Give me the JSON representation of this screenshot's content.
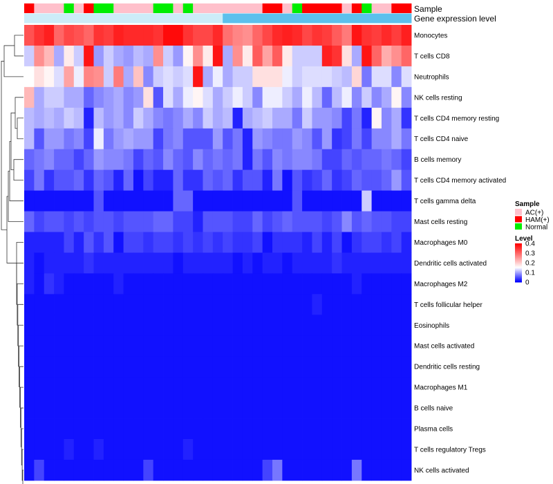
{
  "chart_data": {
    "type": "heatmap",
    "title": "",
    "annotation_tracks": [
      {
        "key": "sample",
        "name": "Sample"
      },
      {
        "key": "gene_level",
        "name": "Gene expression level"
      }
    ],
    "sample_groups": [
      {
        "name": "AC(+)",
        "color": "#ffc0cb"
      },
      {
        "name": "HAM(+)",
        "color": "#ff0000"
      },
      {
        "name": "Normal",
        "color": "#00ee00"
      }
    ],
    "sample_annotation": [
      "HAM(+)",
      "AC(+)",
      "AC(+)",
      "AC(+)",
      "Normal",
      "AC(+)",
      "HAM(+)",
      "Normal",
      "Normal",
      "AC(+)",
      "AC(+)",
      "AC(+)",
      "AC(+)",
      "Normal",
      "Normal",
      "AC(+)",
      "Normal",
      "AC(+)",
      "AC(+)",
      "AC(+)",
      "AC(+)",
      "AC(+)",
      "AC(+)",
      "AC(+)",
      "HAM(+)",
      "HAM(+)",
      "AC(+)",
      "Normal",
      "HAM(+)",
      "HAM(+)",
      "HAM(+)",
      "HAM(+)",
      "AC(+)",
      "HAM(+)",
      "Normal",
      "AC(+)",
      "AC(+)",
      "HAM(+)",
      "HAM(+)"
    ],
    "gene_level_colors": {
      "low": "#ccecf8",
      "high": "#5cc0ec"
    },
    "gene_level_split": 20,
    "value_legend": {
      "title": "Level",
      "ticks": [
        "0.4",
        "0.3",
        "0.2",
        "0.1",
        "0"
      ],
      "min": 0,
      "max": 0.4
    },
    "sample_legend_title": "Sample",
    "color_scale": {
      "low": "#0000ff",
      "mid": "#ffffff",
      "high": "#ff0000",
      "min": 0,
      "mid_value": 0.15,
      "max": 0.4
    },
    "rows": [
      {
        "name": "Monocytes",
        "values": [
          0.32,
          0.35,
          0.37,
          0.3,
          0.33,
          0.32,
          0.3,
          0.35,
          0.34,
          0.37,
          0.36,
          0.36,
          0.36,
          0.35,
          0.39,
          0.39,
          0.35,
          0.33,
          0.33,
          0.36,
          0.29,
          0.27,
          0.26,
          0.3,
          0.33,
          0.36,
          0.37,
          0.36,
          0.33,
          0.35,
          0.34,
          0.31,
          0.28,
          0.38,
          0.35,
          0.34,
          0.36,
          0.34,
          0.37
        ]
      },
      {
        "name": "T cells CD8",
        "values": [
          0.12,
          0.26,
          0.22,
          0.1,
          0.17,
          0.12,
          0.38,
          0.09,
          0.12,
          0.1,
          0.09,
          0.11,
          0.1,
          0.26,
          0.12,
          0.09,
          0.16,
          0.26,
          0.17,
          0.38,
          0.1,
          0.26,
          0.17,
          0.31,
          0.24,
          0.31,
          0.17,
          0.12,
          0.12,
          0.12,
          0.37,
          0.35,
          0.18,
          0.1,
          0.38,
          0.3,
          0.23,
          0.26,
          0.3
        ]
      },
      {
        "name": "Neutrophils",
        "values": [
          0.15,
          0.18,
          0.16,
          0.13,
          0.24,
          0.14,
          0.27,
          0.26,
          0.12,
          0.28,
          0.1,
          0.21,
          0.08,
          0.12,
          0.13,
          0.12,
          0.13,
          0.38,
          0.1,
          0.14,
          0.1,
          0.12,
          0.12,
          0.18,
          0.18,
          0.18,
          0.14,
          0.12,
          0.13,
          0.13,
          0.13,
          0.12,
          0.11,
          0.19,
          0.07,
          0.13,
          0.13,
          0.08,
          0.13
        ]
      },
      {
        "name": "NK cells resting",
        "values": [
          0.22,
          0.1,
          0.12,
          0.12,
          0.1,
          0.1,
          0.06,
          0.08,
          0.09,
          0.1,
          0.08,
          0.09,
          0.18,
          0.05,
          0.13,
          0.1,
          0.14,
          0.16,
          0.13,
          0.1,
          0.12,
          0.14,
          0.12,
          0.08,
          0.14,
          0.14,
          0.12,
          0.1,
          0.14,
          0.11,
          0.06,
          0.11,
          0.14,
          0.08,
          0.12,
          0.08,
          0.1,
          0.16,
          0.08
        ]
      },
      {
        "name": "T cells CD4 memory resting",
        "values": [
          0.11,
          0.1,
          0.11,
          0.1,
          0.12,
          0.11,
          0.02,
          0.11,
          0.09,
          0.1,
          0.08,
          0.12,
          0.1,
          0.08,
          0.07,
          0.08,
          0.1,
          0.08,
          0.12,
          0.1,
          0.11,
          0.02,
          0.1,
          0.11,
          0.12,
          0.1,
          0.1,
          0.07,
          0.12,
          0.09,
          0.09,
          0.08,
          0.04,
          0.07,
          0.02,
          0.16,
          0.08,
          0.1,
          0.03
        ]
      },
      {
        "name": "T cells CD4 naive",
        "values": [
          0.11,
          0.05,
          0.09,
          0.09,
          0.07,
          0.08,
          0.04,
          0.14,
          0.07,
          0.09,
          0.1,
          0.09,
          0.09,
          0.04,
          0.07,
          0.08,
          0.05,
          0.05,
          0.05,
          0.09,
          0.05,
          0.07,
          0.02,
          0.09,
          0.08,
          0.07,
          0.07,
          0.09,
          0.08,
          0.05,
          0.09,
          0.03,
          0.04,
          0.07,
          0.04,
          0.08,
          0.08,
          0.1,
          0.07
        ]
      },
      {
        "name": "B cells memory",
        "values": [
          0.06,
          0.07,
          0.08,
          0.06,
          0.06,
          0.04,
          0.06,
          0.09,
          0.08,
          0.08,
          0.07,
          0.04,
          0.06,
          0.05,
          0.08,
          0.06,
          0.05,
          0.08,
          0.06,
          0.07,
          0.06,
          0.07,
          0.02,
          0.07,
          0.05,
          0.08,
          0.07,
          0.08,
          0.08,
          0.07,
          0.04,
          0.04,
          0.06,
          0.05,
          0.06,
          0.06,
          0.07,
          0.06,
          0.04
        ]
      },
      {
        "name": "T cells CD4 memory activated",
        "values": [
          0.04,
          0.07,
          0.03,
          0.05,
          0.05,
          0.06,
          0.03,
          0.06,
          0.05,
          0.02,
          0.06,
          0.01,
          0.04,
          0.02,
          0.02,
          0.06,
          0.03,
          0.03,
          0.06,
          0.05,
          0.06,
          0.03,
          0.05,
          0.05,
          0.02,
          0.07,
          0.01,
          0.05,
          0.03,
          0.04,
          0.06,
          0.03,
          0.04,
          0.06,
          0.05,
          0.05,
          0.06,
          0.09,
          0.05
        ]
      },
      {
        "name": "T cells gamma delta",
        "values": [
          0.01,
          0.01,
          0.01,
          0.01,
          0.01,
          0.01,
          0.01,
          0.05,
          0.01,
          0.01,
          0.01,
          0.01,
          0.01,
          0.01,
          0.01,
          0.06,
          0.06,
          0.01,
          0.01,
          0.01,
          0.01,
          0.01,
          0.01,
          0.01,
          0.01,
          0.01,
          0.01,
          0.05,
          0.01,
          0.01,
          0.01,
          0.01,
          0.01,
          0.01,
          0.12,
          0.01,
          0.01,
          0.01,
          0.01
        ]
      },
      {
        "name": "Mast cells resting",
        "values": [
          0.06,
          0.04,
          0.05,
          0.05,
          0.04,
          0.05,
          0.04,
          0.05,
          0.05,
          0.04,
          0.05,
          0.05,
          0.05,
          0.06,
          0.06,
          0.04,
          0.04,
          0.02,
          0.05,
          0.05,
          0.05,
          0.04,
          0.04,
          0.06,
          0.04,
          0.05,
          0.06,
          0.05,
          0.05,
          0.05,
          0.04,
          0.05,
          0.08,
          0.05,
          0.06,
          0.05,
          0.05,
          0.04,
          0.04
        ]
      },
      {
        "name": "Macrophages M0",
        "values": [
          0.02,
          0.02,
          0.02,
          0.02,
          0.04,
          0.02,
          0.05,
          0.03,
          0.05,
          0.01,
          0.04,
          0.04,
          0.03,
          0.04,
          0.04,
          0.03,
          0.04,
          0.03,
          0.04,
          0.03,
          0.04,
          0.03,
          0.03,
          0.04,
          0.01,
          0.03,
          0.03,
          0.03,
          0.02,
          0.04,
          0.02,
          0.04,
          0.01,
          0.03,
          0.04,
          0.04,
          0.03,
          0.04,
          0.02
        ]
      },
      {
        "name": "Dendritic cells activated",
        "values": [
          0.02,
          0.01,
          0.02,
          0.02,
          0.02,
          0.02,
          0.03,
          0.02,
          0.02,
          0.02,
          0.02,
          0.02,
          0.02,
          0.02,
          0.02,
          0.01,
          0.02,
          0.02,
          0.02,
          0.02,
          0.02,
          0.01,
          0.02,
          0.01,
          0.02,
          0.02,
          0.01,
          0.02,
          0.02,
          0.02,
          0.02,
          0.03,
          0.02,
          0.02,
          0.02,
          0.02,
          0.02,
          0.02,
          0.02
        ]
      },
      {
        "name": "Macrophages M2",
        "values": [
          0.02,
          0.01,
          0.03,
          0.02,
          0.01,
          0.01,
          0.01,
          0.01,
          0.01,
          0.02,
          0.01,
          0.01,
          0.01,
          0.01,
          0.01,
          0.01,
          0.01,
          0.01,
          0.01,
          0.01,
          0.01,
          0.01,
          0.01,
          0.01,
          0.01,
          0.01,
          0.01,
          0.01,
          0.01,
          0.01,
          0.01,
          0.01,
          0.01,
          0.02,
          0.01,
          0.01,
          0.01,
          0.01,
          0.01
        ]
      },
      {
        "name": "T cells follicular helper",
        "values": [
          0.01,
          0.01,
          0.01,
          0.01,
          0.01,
          0.01,
          0.01,
          0.01,
          0.01,
          0.01,
          0.01,
          0.01,
          0.01,
          0.01,
          0.01,
          0.01,
          0.01,
          0.01,
          0.01,
          0.01,
          0.01,
          0.01,
          0.01,
          0.01,
          0.01,
          0.01,
          0.01,
          0.01,
          0.01,
          0.02,
          0.01,
          0.01,
          0.01,
          0.01,
          0.01,
          0.01,
          0.01,
          0.01,
          0.01
        ]
      },
      {
        "name": "Eosinophils",
        "values": [
          0.01,
          0.01,
          0.01,
          0.01,
          0.01,
          0.01,
          0.01,
          0.01,
          0.01,
          0.01,
          0.01,
          0.01,
          0.01,
          0.01,
          0.01,
          0.01,
          0.01,
          0.01,
          0.01,
          0.01,
          0.01,
          0.01,
          0.01,
          0.01,
          0.01,
          0.01,
          0.01,
          0.01,
          0.01,
          0.01,
          0.01,
          0.01,
          0.01,
          0.01,
          0.01,
          0.01,
          0.01,
          0.01,
          0.01
        ]
      },
      {
        "name": "Mast cells activated",
        "values": [
          0.01,
          0.01,
          0.01,
          0.01,
          0.01,
          0.01,
          0.01,
          0.01,
          0.01,
          0.01,
          0.01,
          0.01,
          0.01,
          0.01,
          0.01,
          0.01,
          0.01,
          0.01,
          0.01,
          0.01,
          0.01,
          0.01,
          0.01,
          0.01,
          0.01,
          0.01,
          0.01,
          0.01,
          0.01,
          0.01,
          0.01,
          0.01,
          0.01,
          0.01,
          0.01,
          0.01,
          0.01,
          0.01,
          0.01
        ]
      },
      {
        "name": "Dendritic cells resting",
        "values": [
          0.01,
          0.01,
          0.01,
          0.01,
          0.01,
          0.01,
          0.01,
          0.01,
          0.01,
          0.01,
          0.01,
          0.01,
          0.01,
          0.01,
          0.01,
          0.01,
          0.01,
          0.01,
          0.01,
          0.01,
          0.01,
          0.01,
          0.01,
          0.01,
          0.01,
          0.01,
          0.01,
          0.01,
          0.01,
          0.01,
          0.01,
          0.01,
          0.01,
          0.01,
          0.01,
          0.01,
          0.01,
          0.01,
          0.01
        ]
      },
      {
        "name": "Macrophages M1",
        "values": [
          0.01,
          0.01,
          0.01,
          0.01,
          0.01,
          0.01,
          0.01,
          0.01,
          0.01,
          0.01,
          0.01,
          0.01,
          0.01,
          0.01,
          0.01,
          0.01,
          0.01,
          0.01,
          0.01,
          0.01,
          0.01,
          0.01,
          0.01,
          0.01,
          0.01,
          0.01,
          0.01,
          0.01,
          0.01,
          0.01,
          0.01,
          0.01,
          0.01,
          0.01,
          0.01,
          0.01,
          0.01,
          0.01,
          0.01
        ]
      },
      {
        "name": "B cells naive",
        "values": [
          0.01,
          0.01,
          0.01,
          0.01,
          0.01,
          0.01,
          0.01,
          0.01,
          0.01,
          0.01,
          0.01,
          0.01,
          0.01,
          0.01,
          0.01,
          0.01,
          0.01,
          0.01,
          0.01,
          0.01,
          0.01,
          0.01,
          0.01,
          0.01,
          0.01,
          0.01,
          0.01,
          0.01,
          0.01,
          0.01,
          0.01,
          0.01,
          0.01,
          0.01,
          0.01,
          0.01,
          0.01,
          0.01,
          0.01
        ]
      },
      {
        "name": "Plasma cells",
        "values": [
          0.01,
          0.01,
          0.01,
          0.01,
          0.01,
          0.01,
          0.01,
          0.01,
          0.01,
          0.01,
          0.01,
          0.01,
          0.01,
          0.01,
          0.01,
          0.01,
          0.01,
          0.01,
          0.01,
          0.01,
          0.01,
          0.01,
          0.01,
          0.01,
          0.01,
          0.01,
          0.01,
          0.01,
          0.01,
          0.01,
          0.01,
          0.01,
          0.01,
          0.01,
          0.01,
          0.01,
          0.01,
          0.01,
          0.01
        ]
      },
      {
        "name": "T cells regulatory  Tregs",
        "values": [
          0.01,
          0.01,
          0.01,
          0.01,
          0.02,
          0.01,
          0.01,
          0.02,
          0.01,
          0.01,
          0.01,
          0.01,
          0.01,
          0.01,
          0.01,
          0.01,
          0.02,
          0.01,
          0.01,
          0.01,
          0.01,
          0.01,
          0.01,
          0.01,
          0.01,
          0.01,
          0.01,
          0.01,
          0.01,
          0.01,
          0.01,
          0.01,
          0.01,
          0.01,
          0.01,
          0.01,
          0.01,
          0.01,
          0.01
        ]
      },
      {
        "name": "NK cells activated",
        "values": [
          0.01,
          0.04,
          0.01,
          0.01,
          0.01,
          0.01,
          0.01,
          0.01,
          0.01,
          0.01,
          0.01,
          0.01,
          0.04,
          0.01,
          0.01,
          0.01,
          0.01,
          0.01,
          0.01,
          0.01,
          0.01,
          0.01,
          0.01,
          0.01,
          0.04,
          0.07,
          0.01,
          0.01,
          0.01,
          0.01,
          0.01,
          0.01,
          0.01,
          0.07,
          0.01,
          0.01,
          0.01,
          0.01,
          0.01
        ]
      }
    ]
  }
}
